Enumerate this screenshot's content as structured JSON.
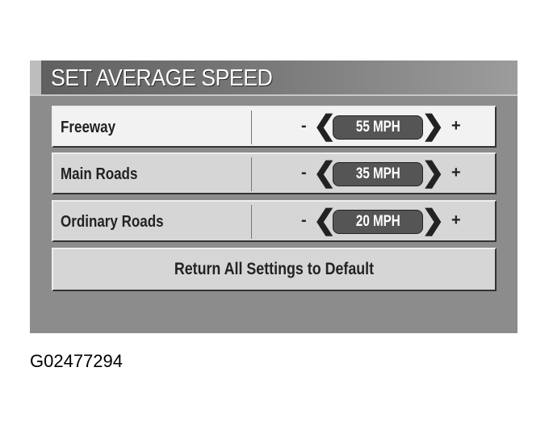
{
  "screen": {
    "title": "SET AVERAGE SPEED"
  },
  "rows": [
    {
      "label": "Freeway",
      "minus": "-",
      "value": "55 MPH",
      "plus": "+",
      "selected": true
    },
    {
      "label": "Main Roads",
      "minus": "-",
      "value": "35 MPH",
      "plus": "+",
      "selected": false
    },
    {
      "label": "Ordinary Roads",
      "minus": "-",
      "value": "20 MPH",
      "plus": "+",
      "selected": false
    }
  ],
  "reset_button": "Return All Settings to Default",
  "icons": {
    "left": "chevron-left-icon",
    "right": "chevron-right-icon"
  },
  "caption": "G02477294"
}
